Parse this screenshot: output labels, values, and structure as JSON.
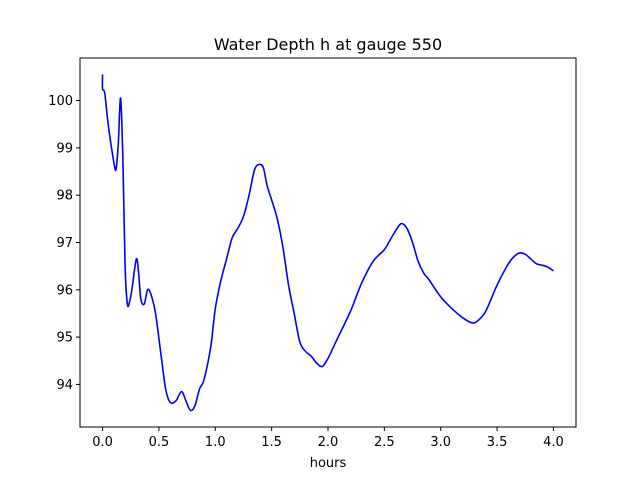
{
  "chart_data": {
    "type": "line",
    "title": "Water Depth h at gauge 550",
    "xlabel": "hours",
    "ylabel": "",
    "xlim": [
      -0.2,
      4.2
    ],
    "ylim": [
      93.1,
      100.9
    ],
    "xticks": [
      0.0,
      0.5,
      1.0,
      1.5,
      2.0,
      2.5,
      3.0,
      3.5,
      4.0
    ],
    "xtick_labels": [
      "0.0",
      "0.5",
      "1.0",
      "1.5",
      "2.0",
      "2.5",
      "3.0",
      "3.5",
      "4.0"
    ],
    "yticks": [
      94,
      95,
      96,
      97,
      98,
      99,
      100
    ],
    "ytick_labels": [
      "94",
      "95",
      "96",
      "97",
      "98",
      "99",
      "100"
    ],
    "grid": false,
    "series": [
      {
        "color": "#0000ff",
        "x": [
          0.0,
          0.0,
          0.02,
          0.05,
          0.1,
          0.12,
          0.14,
          0.16,
          0.18,
          0.2,
          0.22,
          0.24,
          0.26,
          0.3,
          0.32,
          0.34,
          0.37,
          0.4,
          0.43,
          0.47,
          0.52,
          0.56,
          0.6,
          0.65,
          0.7,
          0.74,
          0.78,
          0.82,
          0.86,
          0.9,
          0.96,
          1.0,
          1.05,
          1.1,
          1.15,
          1.2,
          1.25,
          1.3,
          1.35,
          1.4,
          1.43,
          1.46,
          1.5,
          1.55,
          1.6,
          1.65,
          1.7,
          1.75,
          1.8,
          1.85,
          1.9,
          1.95,
          2.0,
          2.05,
          2.1,
          2.2,
          2.3,
          2.4,
          2.5,
          2.55,
          2.6,
          2.65,
          2.7,
          2.75,
          2.8,
          2.85,
          2.9,
          3.0,
          3.1,
          3.2,
          3.28,
          3.33,
          3.4,
          3.5,
          3.6,
          3.65,
          3.7,
          3.75,
          3.8,
          3.85,
          3.9,
          3.95,
          4.0
        ],
        "y": [
          100.55,
          100.25,
          100.15,
          99.5,
          98.7,
          98.55,
          99.1,
          100.05,
          98.8,
          96.5,
          95.7,
          95.75,
          96.0,
          96.65,
          96.35,
          95.8,
          95.7,
          96.0,
          95.9,
          95.5,
          94.6,
          93.9,
          93.62,
          93.65,
          93.85,
          93.65,
          93.45,
          93.55,
          93.9,
          94.1,
          94.8,
          95.6,
          96.2,
          96.65,
          97.1,
          97.3,
          97.55,
          98.0,
          98.55,
          98.65,
          98.55,
          98.2,
          97.9,
          97.5,
          96.9,
          96.1,
          95.5,
          94.9,
          94.7,
          94.6,
          94.45,
          94.38,
          94.55,
          94.8,
          95.05,
          95.55,
          96.15,
          96.6,
          96.85,
          97.05,
          97.25,
          97.4,
          97.3,
          97.0,
          96.6,
          96.35,
          96.2,
          95.85,
          95.6,
          95.4,
          95.3,
          95.35,
          95.55,
          96.1,
          96.55,
          96.7,
          96.78,
          96.75,
          96.65,
          96.55,
          96.52,
          96.48,
          96.4
        ]
      }
    ]
  }
}
